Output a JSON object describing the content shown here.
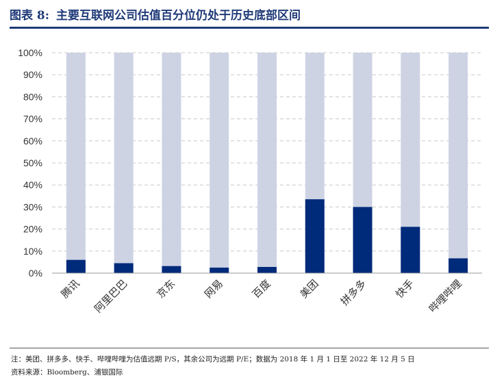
{
  "header": {
    "label": "图表 8:",
    "title": "主要互联网公司估值百分位仍处于历史底部区间"
  },
  "colors": {
    "title": "#1f3a78",
    "bar_fill": "#002a7a",
    "bar_background": "#cdd3e3",
    "grid": "#c8c8c8"
  },
  "chart_data": {
    "type": "bar",
    "stacked_background": true,
    "categories": [
      "腾讯",
      "阿里巴巴",
      "京东",
      "网易",
      "百度",
      "美团",
      "拼多多",
      "快手",
      "哔哩哔哩"
    ],
    "values": [
      6,
      4.5,
      3.2,
      2.5,
      2.8,
      33.5,
      30,
      21,
      6.7
    ],
    "background_value": 100,
    "ylim": [
      0,
      100
    ],
    "yticks": [
      "0%",
      "10%",
      "20%",
      "30%",
      "40%",
      "50%",
      "60%",
      "70%",
      "80%",
      "90%",
      "100%"
    ],
    "grid": "horizontal-dashed",
    "xlabel": "",
    "ylabel": ""
  },
  "footer": {
    "note": "注：美团、拼多多、快手、哔哩哔哩为估值远期 P/S，其余公司为远期 P/E；数据为 2018 年 1 月 1 日至 2022 年 12 月 5 日",
    "source": "资料来源：Bloomberg、浦银国际"
  }
}
